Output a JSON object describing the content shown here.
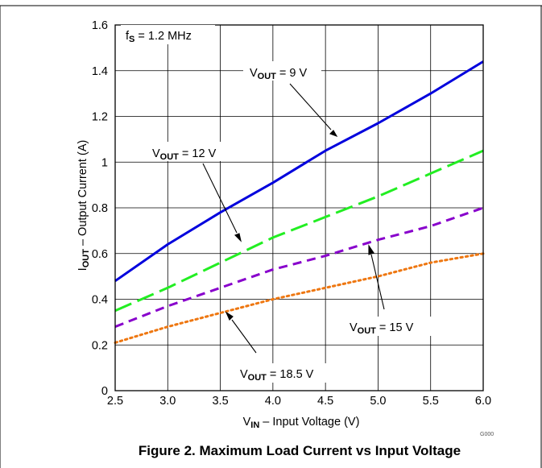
{
  "chart_data": {
    "type": "line",
    "caption": "Figure 2. Maximum Load Current vs Input Voltage",
    "figure_code": "G000",
    "xlabel": {
      "main": "V",
      "sub": "IN",
      "rest": " – Input Voltage (V)"
    },
    "ylabel": {
      "main": "I",
      "sub": "OUT",
      "rest": " – Output Current (A)"
    },
    "xlim": [
      2.5,
      6.0
    ],
    "ylim": [
      0,
      1.6
    ],
    "x_ticks": [
      "2.5",
      "3.0",
      "3.5",
      "4.0",
      "4.5",
      "5.0",
      "5.5",
      "6.0"
    ],
    "y_ticks": [
      "0",
      "0.2",
      "0.4",
      "0.6",
      "0.8",
      "1",
      "1.2",
      "1.4",
      "1.6"
    ],
    "grid": true,
    "condition": {
      "main": "f",
      "sub": "S",
      "rest": " = 1.2 MHz"
    },
    "series": [
      {
        "name": {
          "main": "V",
          "sub": "OUT",
          "rest": " = 9 V"
        },
        "color": "#0000dd",
        "style": "solid",
        "x": [
          2.5,
          3.0,
          3.5,
          4.0,
          4.5,
          5.0,
          5.5,
          6.0
        ],
        "y": [
          0.48,
          0.64,
          0.78,
          0.91,
          1.05,
          1.17,
          1.3,
          1.44
        ]
      },
      {
        "name": {
          "main": "V",
          "sub": "OUT",
          "rest": " = 12 V"
        },
        "color": "#22ee22",
        "style": "long-dash",
        "x": [
          2.5,
          3.0,
          3.5,
          4.0,
          4.5,
          5.0,
          5.5,
          6.0
        ],
        "y": [
          0.35,
          0.45,
          0.56,
          0.67,
          0.76,
          0.85,
          0.95,
          1.05
        ]
      },
      {
        "name": {
          "main": "V",
          "sub": "OUT",
          "rest": " = 15 V"
        },
        "color": "#8800cc",
        "style": "short-dash",
        "x": [
          2.5,
          3.0,
          3.5,
          4.0,
          4.5,
          5.0,
          5.5,
          6.0
        ],
        "y": [
          0.28,
          0.37,
          0.45,
          0.53,
          0.59,
          0.66,
          0.72,
          0.8
        ]
      },
      {
        "name": {
          "main": "V",
          "sub": "OUT",
          "rest": " = 18.5 V"
        },
        "color": "#ee7711",
        "style": "dotted",
        "x": [
          2.5,
          3.0,
          3.5,
          4.0,
          4.5,
          5.0,
          5.5,
          6.0
        ],
        "y": [
          0.21,
          0.28,
          0.34,
          0.4,
          0.45,
          0.5,
          0.56,
          0.6
        ]
      }
    ]
  }
}
